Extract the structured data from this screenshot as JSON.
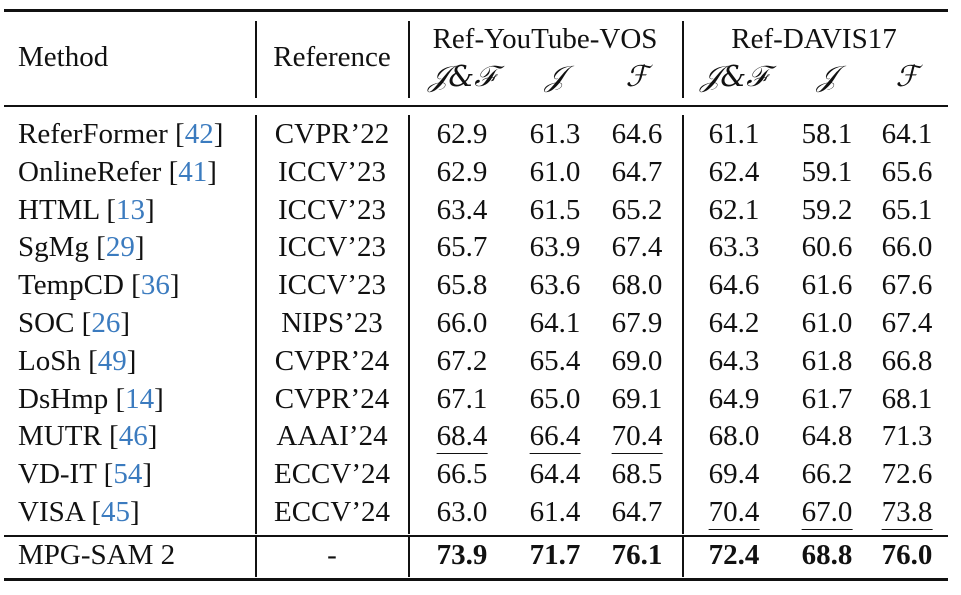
{
  "table": {
    "headers": {
      "method": "Method",
      "reference": "Reference",
      "group1": "Ref-YouTube-VOS",
      "group2": "Ref-DAVIS17",
      "metric_jf": "𝒥&ℱ",
      "metric_j": "𝒥",
      "metric_f": "ℱ"
    },
    "rows": [
      {
        "method": "ReferFormer [",
        "cite": "42",
        "close": "]",
        "reference": "CVPR’22",
        "values": [
          "62.9",
          "61.3",
          "64.6",
          "61.1",
          "58.1",
          "64.1"
        ],
        "underline": [
          false,
          false,
          false,
          false,
          false,
          false
        ],
        "bold": false
      },
      {
        "method": "OnlineRefer [",
        "cite": "41",
        "close": "]",
        "reference": "ICCV’23",
        "values": [
          "62.9",
          "61.0",
          "64.7",
          "62.4",
          "59.1",
          "65.6"
        ],
        "underline": [
          false,
          false,
          false,
          false,
          false,
          false
        ],
        "bold": false
      },
      {
        "method": "HTML [",
        "cite": "13",
        "close": "]",
        "reference": "ICCV’23",
        "values": [
          "63.4",
          "61.5",
          "65.2",
          "62.1",
          "59.2",
          "65.1"
        ],
        "underline": [
          false,
          false,
          false,
          false,
          false,
          false
        ],
        "bold": false
      },
      {
        "method": "SgMg [",
        "cite": "29",
        "close": "]",
        "reference": "ICCV’23",
        "values": [
          "65.7",
          "63.9",
          "67.4",
          "63.3",
          "60.6",
          "66.0"
        ],
        "underline": [
          false,
          false,
          false,
          false,
          false,
          false
        ],
        "bold": false
      },
      {
        "method": "TempCD [",
        "cite": "36",
        "close": "]",
        "reference": "ICCV’23",
        "values": [
          "65.8",
          "63.6",
          "68.0",
          "64.6",
          "61.6",
          "67.6"
        ],
        "underline": [
          false,
          false,
          false,
          false,
          false,
          false
        ],
        "bold": false
      },
      {
        "method": "SOC [",
        "cite": "26",
        "close": "]",
        "reference": "NIPS’23",
        "values": [
          "66.0",
          "64.1",
          "67.9",
          "64.2",
          "61.0",
          "67.4"
        ],
        "underline": [
          false,
          false,
          false,
          false,
          false,
          false
        ],
        "bold": false
      },
      {
        "method": "LoSh [",
        "cite": "49",
        "close": "]",
        "reference": "CVPR’24",
        "values": [
          "67.2",
          "65.4",
          "69.0",
          "64.3",
          "61.8",
          "66.8"
        ],
        "underline": [
          false,
          false,
          false,
          false,
          false,
          false
        ],
        "bold": false
      },
      {
        "method": "DsHmp [",
        "cite": "14",
        "close": "]",
        "reference": "CVPR’24",
        "values": [
          "67.1",
          "65.0",
          "69.1",
          "64.9",
          "61.7",
          "68.1"
        ],
        "underline": [
          false,
          false,
          false,
          false,
          false,
          false
        ],
        "bold": false
      },
      {
        "method": "MUTR [",
        "cite": "46",
        "close": "]",
        "reference": "AAAI’24",
        "values": [
          "68.4",
          "66.4",
          "70.4",
          "68.0",
          "64.8",
          "71.3"
        ],
        "underline": [
          true,
          true,
          true,
          false,
          false,
          false
        ],
        "bold": false
      },
      {
        "method": "VD-IT [",
        "cite": "54",
        "close": "]",
        "reference": "ECCV’24",
        "values": [
          "66.5",
          "64.4",
          "68.5",
          "69.4",
          "66.2",
          "72.6"
        ],
        "underline": [
          false,
          false,
          false,
          false,
          false,
          false
        ],
        "bold": false
      },
      {
        "method": "VISA [",
        "cite": "45",
        "close": "]",
        "reference": "ECCV’24",
        "values": [
          "63.0",
          "61.4",
          "64.7",
          "70.4",
          "67.0",
          "73.8"
        ],
        "underline": [
          false,
          false,
          false,
          true,
          true,
          true
        ],
        "bold": false
      }
    ],
    "final_row": {
      "method": "MPG-SAM 2",
      "reference": "-",
      "values": [
        "73.9",
        "71.7",
        "76.1",
        "72.4",
        "68.8",
        "76.0"
      ]
    }
  }
}
